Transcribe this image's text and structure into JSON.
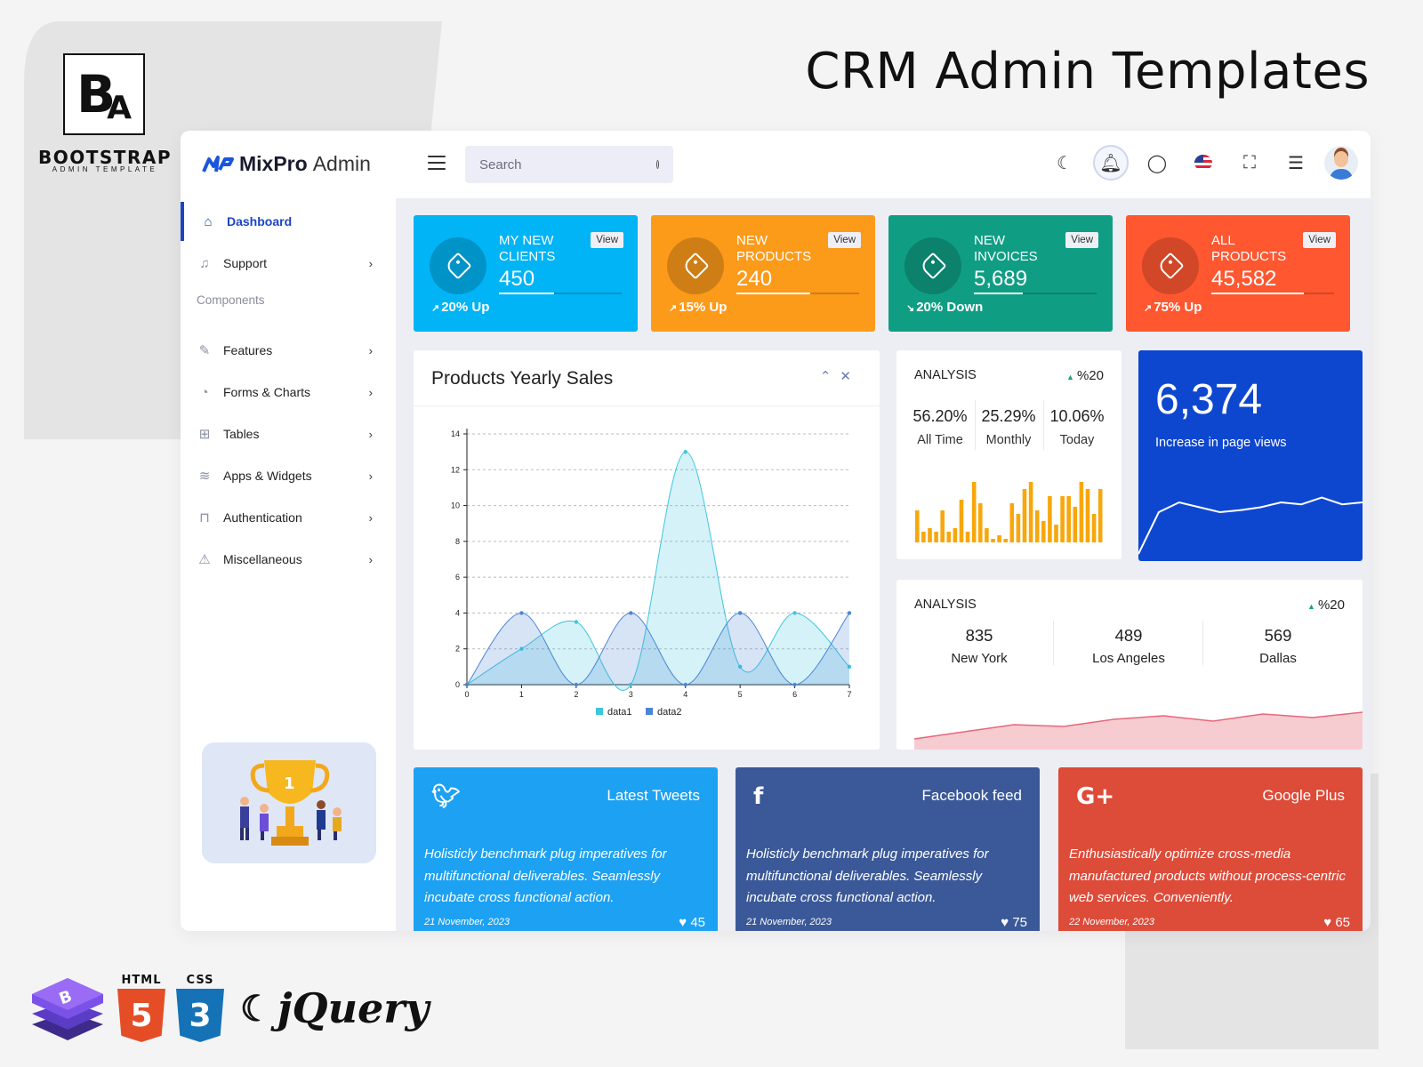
{
  "hero_title": "CRM Admin Templates",
  "brand": {
    "logo_text": "B",
    "logo_sub": "A",
    "name": "BOOTSTRAP",
    "tagline": "ADMIN TEMPLATE"
  },
  "app": {
    "logo_bold": "MixPro",
    "logo_rest": "Admin"
  },
  "search": {
    "placeholder": "Search"
  },
  "sidebar": {
    "items": [
      {
        "label": "Dashboard",
        "icon": "home-icon"
      },
      {
        "label": "Support",
        "icon": "headset-icon"
      },
      {
        "label": "Features",
        "icon": "edit-icon"
      },
      {
        "label": "Forms & Charts",
        "icon": "pie-chart-icon"
      },
      {
        "label": "Tables",
        "icon": "grid-icon"
      },
      {
        "label": "Apps & Widgets",
        "icon": "database-icon"
      },
      {
        "label": "Authentication",
        "icon": "lock-icon"
      },
      {
        "label": "Miscellaneous",
        "icon": "warning-icon"
      }
    ],
    "section_label": "Components"
  },
  "stats": [
    {
      "title": "MY NEW CLIENTS",
      "value": "450",
      "view": "View",
      "trend": "20% Up",
      "progress": 0.45,
      "color": "#00b4f5"
    },
    {
      "title": "NEW PRODUCTS",
      "value": "240",
      "view": "View",
      "trend": "15% Up",
      "progress": 0.6,
      "color": "#fc9a1a"
    },
    {
      "title": "NEW INVOICES",
      "value": "5,689",
      "view": "View",
      "trend": "20% Down",
      "progress": 0.4,
      "color": "#0f9e84"
    },
    {
      "title": "ALL PRODUCTS",
      "value": "45,582",
      "view": "View",
      "trend": "75% Up",
      "progress": 0.75,
      "color": "#ff5730"
    }
  ],
  "yearly_sales": {
    "title": "Products Yearly Sales",
    "legend": [
      "data1",
      "data2"
    ]
  },
  "chart_data": {
    "type": "area",
    "x": [
      0,
      1,
      2,
      3,
      4,
      5,
      6,
      7
    ],
    "ylim": [
      0,
      14
    ],
    "yticks": [
      0,
      2,
      4,
      6,
      8,
      10,
      12,
      14
    ],
    "series": [
      {
        "name": "data1",
        "values": [
          0,
          2,
          3.5,
          0,
          13,
          1,
          4,
          1
        ],
        "color": "#3ec6dd"
      },
      {
        "name": "data2",
        "values": [
          0,
          4,
          0,
          4,
          0,
          4,
          0,
          4
        ],
        "color": "#4a86d6"
      }
    ],
    "legend_position": "bottom"
  },
  "analysis1": {
    "heading": "ANALYSIS",
    "change": "%20",
    "cols": [
      {
        "value": "56.20%",
        "label": "All Time"
      },
      {
        "value": "25.29%",
        "label": "Monthly"
      },
      {
        "value": "10.06%",
        "label": "Today"
      }
    ],
    "bars": [
      0.45,
      0.15,
      0.2,
      0.15,
      0.45,
      0.15,
      0.2,
      0.6,
      0.15,
      0.85,
      0.55,
      0.2,
      0.05,
      0.1,
      0.05,
      0.55,
      0.4,
      0.75,
      0.85,
      0.45,
      0.3,
      0.65,
      0.25,
      0.65,
      0.65,
      0.5,
      0.85,
      0.75,
      0.4,
      0.75
    ]
  },
  "page_views": {
    "value": "6,374",
    "label": "Increase in page views",
    "series": [
      0.5,
      0.6,
      0.55,
      0.5,
      0.52,
      0.55,
      0.6,
      0.58,
      0.65,
      0.58,
      0.6
    ]
  },
  "analysis2": {
    "heading": "ANALYSIS",
    "change": "%20",
    "cities": [
      {
        "value": "835",
        "label": "New York"
      },
      {
        "value": "489",
        "label": "Los Angeles"
      },
      {
        "value": "569",
        "label": "Dallas"
      }
    ],
    "series": [
      0.05,
      0.25,
      0.45,
      0.4,
      0.6,
      0.7,
      0.55,
      0.75,
      0.65,
      0.8
    ]
  },
  "social": [
    {
      "title": "Latest Tweets",
      "icon": "twitter-icon",
      "text": "Holisticly benchmark plug imperatives for multifunctional deliverables. Seamlessly incubate cross functional action.",
      "date": "21 November, 2023",
      "likes": "45",
      "color": "#1da1f2"
    },
    {
      "title": "Facebook feed",
      "icon": "facebook-icon",
      "text": "Holisticly benchmark plug imperatives for multifunctional deliverables. Seamlessly incubate cross functional action.",
      "date": "21 November, 2023",
      "likes": "75",
      "color": "#3b5998"
    },
    {
      "title": "Google Plus",
      "icon": "google-plus-icon",
      "text": "Enthusiastically optimize cross-media manufactured products without process-centric web services. Conveniently.",
      "date": "22 November, 2023",
      "likes": "65",
      "color": "#dd4b39"
    }
  ],
  "tech": {
    "html": "HTML",
    "css": "CSS",
    "jquery": "jQuery"
  }
}
